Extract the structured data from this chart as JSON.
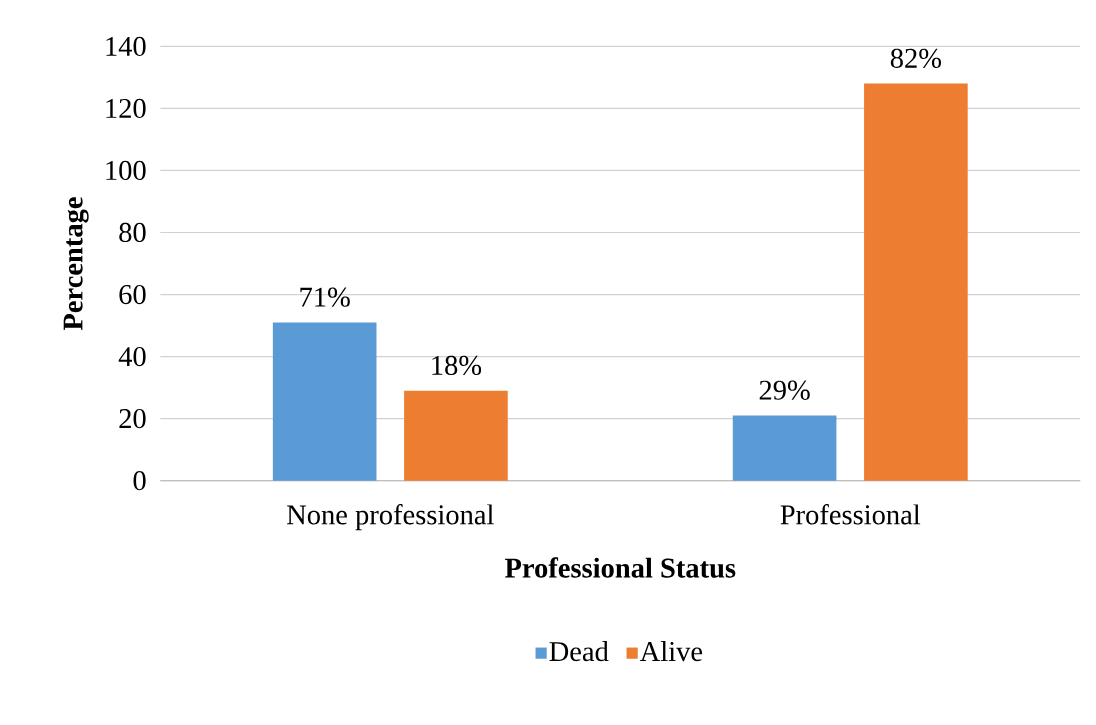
{
  "chart_data": {
    "type": "bar",
    "xlabel": "Professional Status",
    "ylabel": "Percentage",
    "categories": [
      "None professional",
      "Professional"
    ],
    "series": [
      {
        "name": "Dead",
        "color": "#5b9bd5",
        "values": [
          51,
          21
        ]
      },
      {
        "name": "Alive",
        "color": "#ed7d31",
        "values": [
          29,
          128
        ]
      }
    ],
    "annotations": [
      "71%",
      "29%",
      "18%",
      "82%"
    ],
    "ylim": [
      0,
      140
    ],
    "yticks": [
      0,
      20,
      40,
      60,
      80,
      100,
      120,
      140
    ],
    "grid": "y",
    "legend": "bottom"
  }
}
